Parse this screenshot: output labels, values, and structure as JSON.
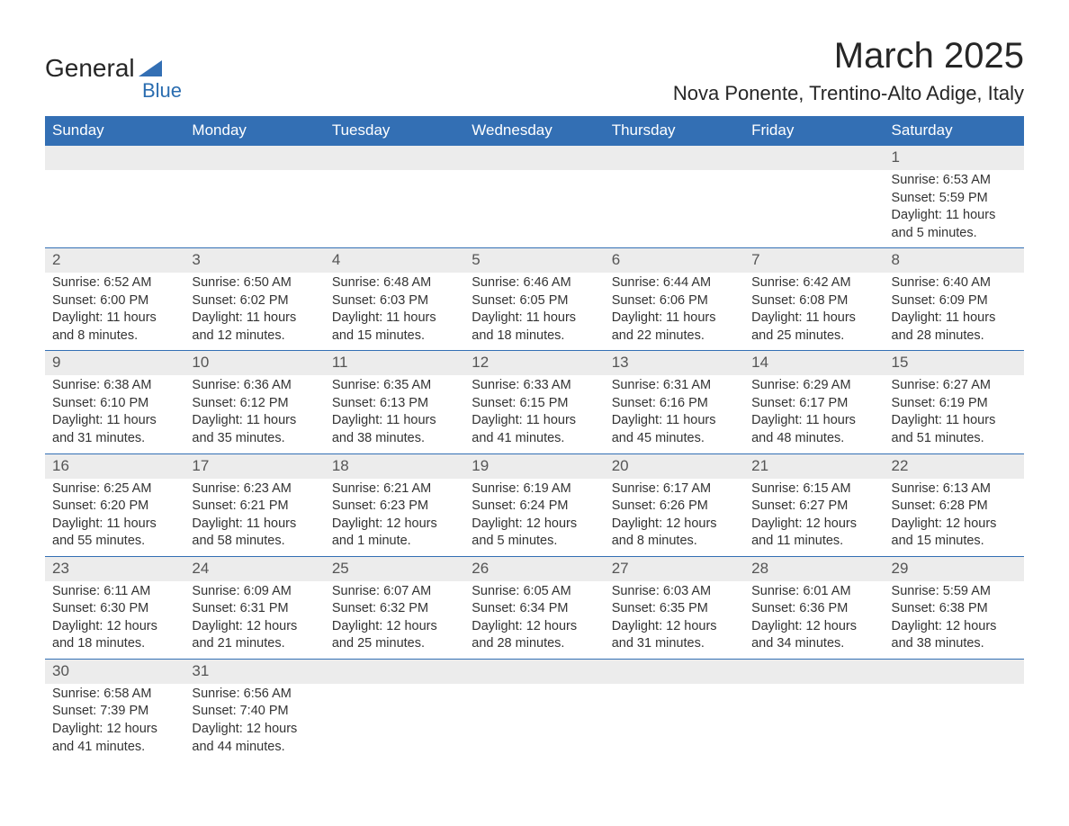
{
  "logo": {
    "text1": "General",
    "text2": "Blue",
    "triangle_color": "#336fb4"
  },
  "title": "March 2025",
  "location": "Nova Ponente, Trentino-Alto Adige, Italy",
  "header_bg": "#336fb4",
  "days_of_week": [
    "Sunday",
    "Monday",
    "Tuesday",
    "Wednesday",
    "Thursday",
    "Friday",
    "Saturday"
  ],
  "weeks": [
    [
      null,
      null,
      null,
      null,
      null,
      null,
      {
        "n": "1",
        "sr": "6:53 AM",
        "ss": "5:59 PM",
        "dl": "11 hours and 5 minutes."
      }
    ],
    [
      {
        "n": "2",
        "sr": "6:52 AM",
        "ss": "6:00 PM",
        "dl": "11 hours and 8 minutes."
      },
      {
        "n": "3",
        "sr": "6:50 AM",
        "ss": "6:02 PM",
        "dl": "11 hours and 12 minutes."
      },
      {
        "n": "4",
        "sr": "6:48 AM",
        "ss": "6:03 PM",
        "dl": "11 hours and 15 minutes."
      },
      {
        "n": "5",
        "sr": "6:46 AM",
        "ss": "6:05 PM",
        "dl": "11 hours and 18 minutes."
      },
      {
        "n": "6",
        "sr": "6:44 AM",
        "ss": "6:06 PM",
        "dl": "11 hours and 22 minutes."
      },
      {
        "n": "7",
        "sr": "6:42 AM",
        "ss": "6:08 PM",
        "dl": "11 hours and 25 minutes."
      },
      {
        "n": "8",
        "sr": "6:40 AM",
        "ss": "6:09 PM",
        "dl": "11 hours and 28 minutes."
      }
    ],
    [
      {
        "n": "9",
        "sr": "6:38 AM",
        "ss": "6:10 PM",
        "dl": "11 hours and 31 minutes."
      },
      {
        "n": "10",
        "sr": "6:36 AM",
        "ss": "6:12 PM",
        "dl": "11 hours and 35 minutes."
      },
      {
        "n": "11",
        "sr": "6:35 AM",
        "ss": "6:13 PM",
        "dl": "11 hours and 38 minutes."
      },
      {
        "n": "12",
        "sr": "6:33 AM",
        "ss": "6:15 PM",
        "dl": "11 hours and 41 minutes."
      },
      {
        "n": "13",
        "sr": "6:31 AM",
        "ss": "6:16 PM",
        "dl": "11 hours and 45 minutes."
      },
      {
        "n": "14",
        "sr": "6:29 AM",
        "ss": "6:17 PM",
        "dl": "11 hours and 48 minutes."
      },
      {
        "n": "15",
        "sr": "6:27 AM",
        "ss": "6:19 PM",
        "dl": "11 hours and 51 minutes."
      }
    ],
    [
      {
        "n": "16",
        "sr": "6:25 AM",
        "ss": "6:20 PM",
        "dl": "11 hours and 55 minutes."
      },
      {
        "n": "17",
        "sr": "6:23 AM",
        "ss": "6:21 PM",
        "dl": "11 hours and 58 minutes."
      },
      {
        "n": "18",
        "sr": "6:21 AM",
        "ss": "6:23 PM",
        "dl": "12 hours and 1 minute."
      },
      {
        "n": "19",
        "sr": "6:19 AM",
        "ss": "6:24 PM",
        "dl": "12 hours and 5 minutes."
      },
      {
        "n": "20",
        "sr": "6:17 AM",
        "ss": "6:26 PM",
        "dl": "12 hours and 8 minutes."
      },
      {
        "n": "21",
        "sr": "6:15 AM",
        "ss": "6:27 PM",
        "dl": "12 hours and 11 minutes."
      },
      {
        "n": "22",
        "sr": "6:13 AM",
        "ss": "6:28 PM",
        "dl": "12 hours and 15 minutes."
      }
    ],
    [
      {
        "n": "23",
        "sr": "6:11 AM",
        "ss": "6:30 PM",
        "dl": "12 hours and 18 minutes."
      },
      {
        "n": "24",
        "sr": "6:09 AM",
        "ss": "6:31 PM",
        "dl": "12 hours and 21 minutes."
      },
      {
        "n": "25",
        "sr": "6:07 AM",
        "ss": "6:32 PM",
        "dl": "12 hours and 25 minutes."
      },
      {
        "n": "26",
        "sr": "6:05 AM",
        "ss": "6:34 PM",
        "dl": "12 hours and 28 minutes."
      },
      {
        "n": "27",
        "sr": "6:03 AM",
        "ss": "6:35 PM",
        "dl": "12 hours and 31 minutes."
      },
      {
        "n": "28",
        "sr": "6:01 AM",
        "ss": "6:36 PM",
        "dl": "12 hours and 34 minutes."
      },
      {
        "n": "29",
        "sr": "5:59 AM",
        "ss": "6:38 PM",
        "dl": "12 hours and 38 minutes."
      }
    ],
    [
      {
        "n": "30",
        "sr": "6:58 AM",
        "ss": "7:39 PM",
        "dl": "12 hours and 41 minutes."
      },
      {
        "n": "31",
        "sr": "6:56 AM",
        "ss": "7:40 PM",
        "dl": "12 hours and 44 minutes."
      },
      null,
      null,
      null,
      null,
      null
    ]
  ],
  "labels": {
    "sunrise": "Sunrise: ",
    "sunset": "Sunset: ",
    "daylight": "Daylight: "
  }
}
